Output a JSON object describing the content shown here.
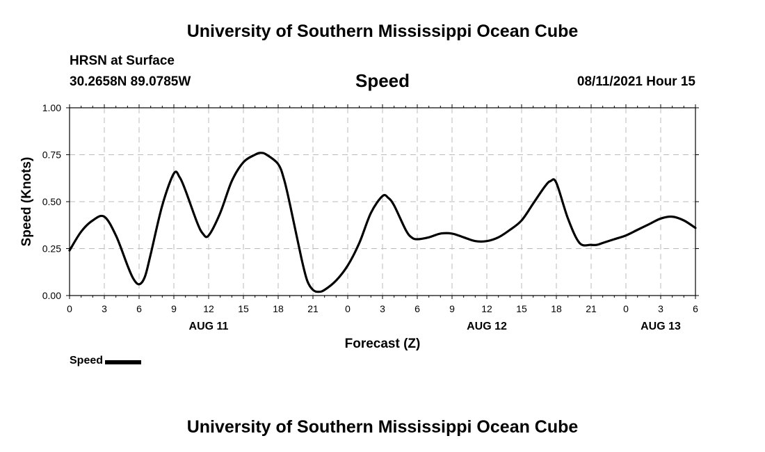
{
  "header": {
    "title": "University of Southern Mississippi Ocean Cube",
    "station": "HRSN at Surface",
    "coordinates": "30.2658N  89.0785W",
    "timestamp": "08/11/2021 Hour 15",
    "footer_title": "University of Southern Mississippi Ocean Cube"
  },
  "chart_data": {
    "type": "line",
    "title": "Speed",
    "xlabel": "Forecast (Z)",
    "ylabel": "Speed (Knots)",
    "ylim": [
      0,
      1
    ],
    "yticks": [
      "0.00",
      "0.25",
      "0.50",
      "0.75",
      "1.00"
    ],
    "xticks": [
      "0",
      "3",
      "6",
      "9",
      "12",
      "15",
      "18",
      "21",
      "0",
      "3",
      "6",
      "9",
      "12",
      "15",
      "18",
      "21",
      "0",
      "3",
      "6"
    ],
    "day_labels": [
      {
        "label": "AUG 11",
        "hour": 12
      },
      {
        "label": "AUG 12",
        "hour": 36
      },
      {
        "label": "AUG 13",
        "hour": 51
      }
    ],
    "xlim_hours": [
      0,
      54
    ],
    "grid": true,
    "legend_position": "bottom-left",
    "series": [
      {
        "name": "Speed",
        "color": "#000000",
        "x": [
          0,
          1,
          2,
          3,
          4,
          5,
          5.5,
          6,
          6.5,
          7,
          8,
          9,
          9.5,
          10,
          11,
          11.5,
          12,
          13,
          14,
          15,
          16,
          16.5,
          17,
          18,
          18.5,
          19,
          20,
          20.5,
          21,
          21.5,
          22,
          23,
          24,
          25,
          26,
          27,
          27.5,
          28,
          29,
          29.5,
          30,
          31,
          32,
          33,
          34,
          35,
          36,
          37,
          38,
          39,
          40,
          41,
          41.5,
          42,
          43,
          44,
          45,
          45.5,
          46,
          47,
          48,
          49,
          50,
          51,
          52,
          53,
          54
        ],
        "y": [
          0.24,
          0.34,
          0.4,
          0.42,
          0.32,
          0.16,
          0.09,
          0.06,
          0.1,
          0.22,
          0.48,
          0.65,
          0.63,
          0.56,
          0.39,
          0.33,
          0.32,
          0.44,
          0.61,
          0.71,
          0.75,
          0.76,
          0.75,
          0.7,
          0.62,
          0.49,
          0.2,
          0.08,
          0.03,
          0.02,
          0.03,
          0.08,
          0.16,
          0.28,
          0.44,
          0.53,
          0.52,
          0.48,
          0.35,
          0.31,
          0.3,
          0.31,
          0.33,
          0.33,
          0.31,
          0.29,
          0.29,
          0.31,
          0.35,
          0.4,
          0.49,
          0.58,
          0.61,
          0.6,
          0.41,
          0.28,
          0.27,
          0.27,
          0.28,
          0.3,
          0.32,
          0.35,
          0.38,
          0.41,
          0.42,
          0.4,
          0.36
        ]
      }
    ]
  }
}
